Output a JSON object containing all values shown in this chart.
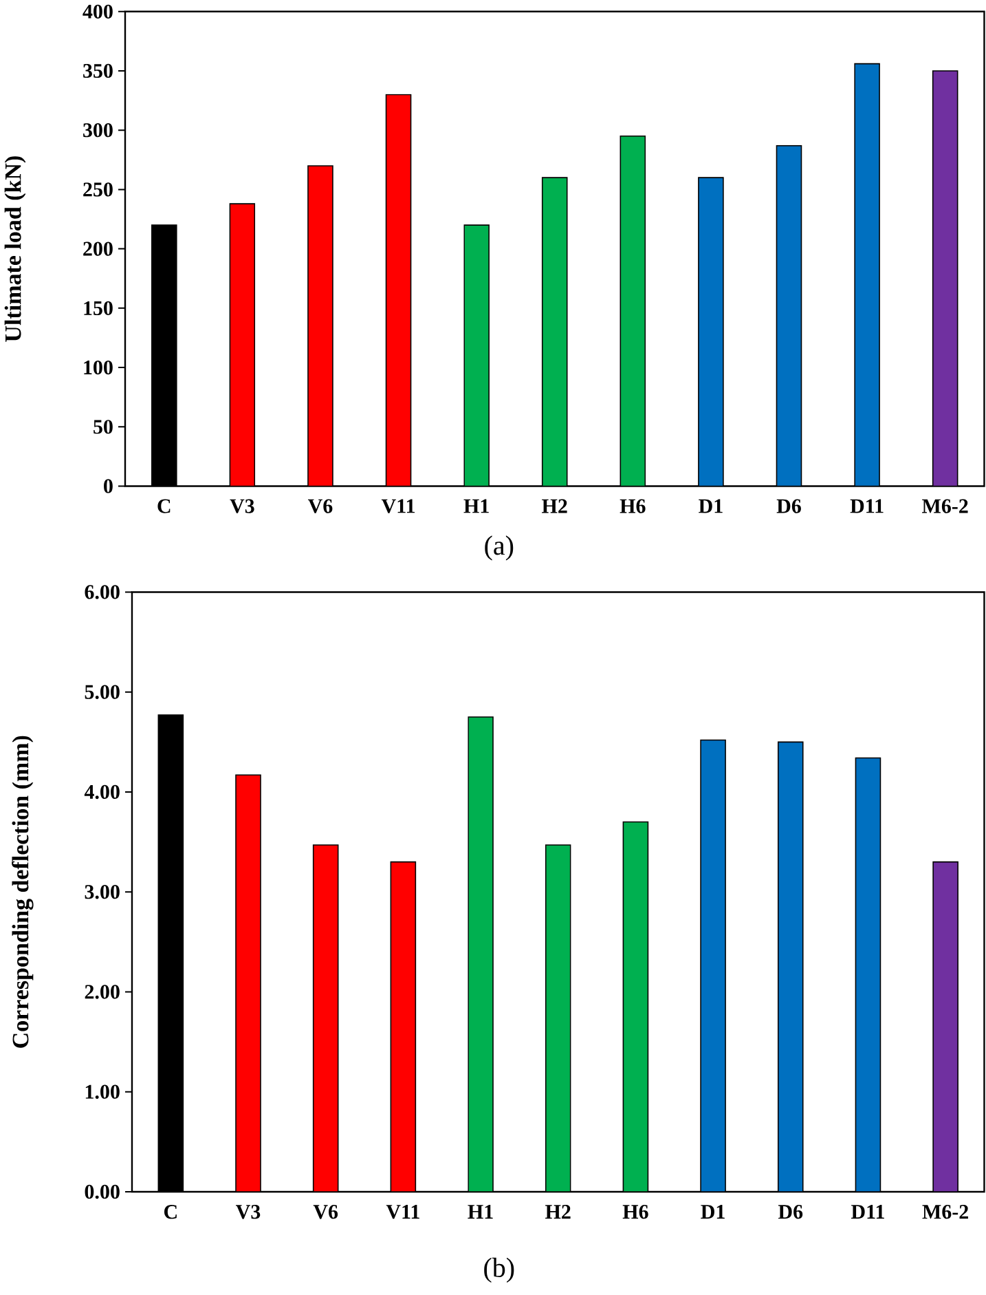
{
  "chart_data": [
    {
      "type": "bar",
      "ylabel": "Ultimate load (kN)",
      "categories": [
        "C",
        "V3",
        "V6",
        "V11",
        "H1",
        "H2",
        "H6",
        "D1",
        "D6",
        "D11",
        "M6-2"
      ],
      "values": [
        220,
        238,
        270,
        330,
        220,
        260,
        295,
        260,
        287,
        356,
        350
      ],
      "colors": [
        "#000000",
        "#ff0000",
        "#ff0000",
        "#ff0000",
        "#00b050",
        "#00b050",
        "#00b050",
        "#0070c0",
        "#0070c0",
        "#0070c0",
        "#7030a0"
      ],
      "ylim": [
        0,
        400
      ],
      "yticks": [
        0,
        50,
        100,
        150,
        200,
        250,
        300,
        350,
        400
      ],
      "annotations": [
        "(a)"
      ]
    },
    {
      "type": "bar",
      "ylabel": "Corresponding deflection (mm)",
      "categories": [
        "C",
        "V3",
        "V6",
        "V11",
        "H1",
        "H2",
        "H6",
        "D1",
        "D6",
        "D11",
        "M6-2"
      ],
      "values": [
        4.77,
        4.17,
        3.47,
        3.3,
        4.75,
        3.47,
        3.7,
        4.52,
        4.5,
        4.34,
        3.3
      ],
      "colors": [
        "#000000",
        "#ff0000",
        "#ff0000",
        "#ff0000",
        "#00b050",
        "#00b050",
        "#00b050",
        "#0070c0",
        "#0070c0",
        "#0070c0",
        "#7030a0"
      ],
      "ylim": [
        0,
        6
      ],
      "yticks": [
        {
          "value": 0,
          "label": "0.00"
        },
        {
          "value": 1,
          "label": "1.00"
        },
        {
          "value": 2,
          "label": "2.00"
        },
        {
          "value": 3,
          "label": "3.00"
        },
        {
          "value": 4,
          "label": "4.00"
        },
        {
          "value": 5,
          "label": "5.00"
        },
        {
          "value": 6,
          "label": "6.00"
        }
      ],
      "annotations": [
        "(b)"
      ]
    }
  ]
}
